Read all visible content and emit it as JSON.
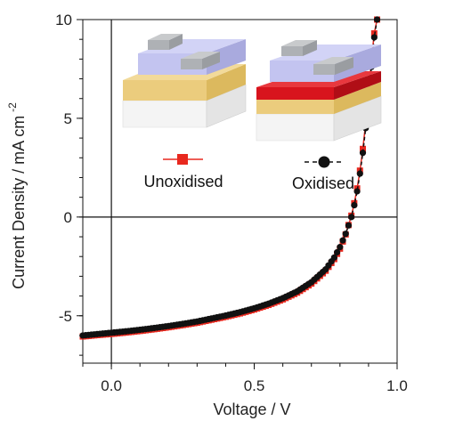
{
  "chart_data": {
    "type": "line",
    "xlabel": "Voltage / V",
    "ylabel": "Current Density / mA cm",
    "ylabel_superscript": "-2",
    "xlim": [
      -0.1,
      1.0
    ],
    "ylim": [
      -7.4,
      10
    ],
    "x_ticks": [
      0.0,
      0.5,
      1.0
    ],
    "x_tick_labels": [
      "0.0",
      "0.5",
      "1.0"
    ],
    "y_ticks": [
      -5,
      0,
      5,
      10
    ],
    "y_tick_labels": [
      "-5",
      "0",
      "5",
      "10"
    ],
    "zero_lines": true,
    "legend_placement": "top-left",
    "series": [
      {
        "name": "Unoxidised",
        "color": "#e8281e",
        "marker": "square",
        "line": "solid",
        "x": [
          -0.1,
          -0.05,
          0.0,
          0.05,
          0.1,
          0.15,
          0.2,
          0.25,
          0.3,
          0.35,
          0.4,
          0.45,
          0.5,
          0.55,
          0.6,
          0.65,
          0.7,
          0.75,
          0.78,
          0.8,
          0.82,
          0.84,
          0.85,
          0.86,
          0.87,
          0.88,
          0.89,
          0.9,
          0.91,
          0.92,
          0.93
        ],
        "y": [
          -6.05,
          -5.98,
          -5.92,
          -5.85,
          -5.77,
          -5.68,
          -5.58,
          -5.47,
          -5.35,
          -5.2,
          -5.05,
          -4.88,
          -4.68,
          -4.45,
          -4.17,
          -3.83,
          -3.37,
          -2.72,
          -2.13,
          -1.6,
          -0.88,
          0.07,
          0.7,
          1.45,
          2.35,
          3.45,
          4.75,
          6.25,
          7.9,
          9.3,
          10.0
        ]
      },
      {
        "name": "Oxidised",
        "color": "#111111",
        "marker": "circle",
        "line": "dashed",
        "x": [
          -0.1,
          -0.05,
          0.0,
          0.05,
          0.1,
          0.15,
          0.2,
          0.25,
          0.3,
          0.35,
          0.4,
          0.45,
          0.5,
          0.55,
          0.6,
          0.65,
          0.7,
          0.75,
          0.78,
          0.8,
          0.82,
          0.84,
          0.85,
          0.86,
          0.87,
          0.88,
          0.89,
          0.9,
          0.91,
          0.92,
          0.93
        ],
        "y": [
          -6.0,
          -5.93,
          -5.86,
          -5.79,
          -5.71,
          -5.62,
          -5.52,
          -5.41,
          -5.29,
          -5.14,
          -4.99,
          -4.82,
          -4.62,
          -4.39,
          -4.11,
          -3.77,
          -3.3,
          -2.65,
          -2.05,
          -1.52,
          -0.85,
          0.0,
          0.6,
          1.3,
          2.2,
          3.25,
          4.5,
          6.0,
          7.6,
          9.1,
          10.0
        ]
      }
    ]
  },
  "legend": {
    "unoxidised_label": "Unoxidised",
    "oxidised_label": "Oxidised"
  },
  "inset_icons": {
    "left_device": "unoxidised-device-stack-icon",
    "right_device": "oxidised-device-stack-icon"
  },
  "colors": {
    "substrate": "#f2f2f2",
    "gold_layer": "#e9c877",
    "oxide_layer": "#d8141d",
    "purple_layer": "#bfc0ee",
    "contacts": "#b9bcbf"
  }
}
